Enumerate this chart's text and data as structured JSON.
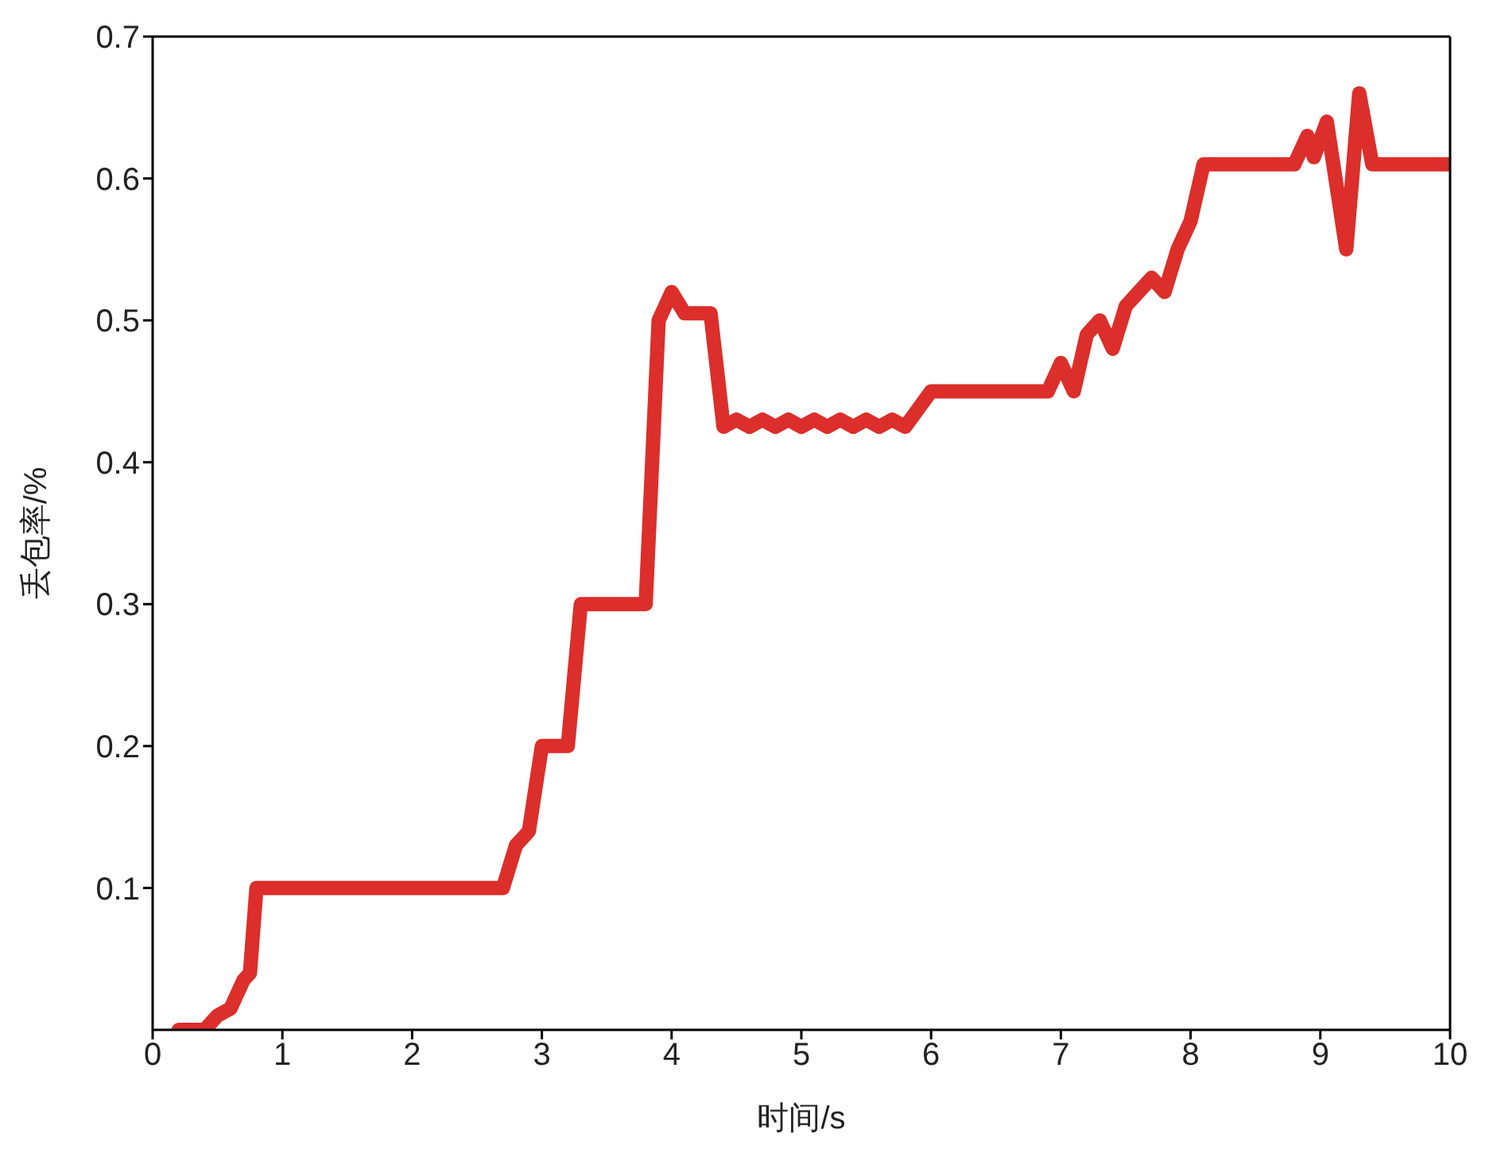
{
  "chart_data": {
    "type": "line",
    "xlabel": "时间/s",
    "ylabel": "丢包率/%",
    "xlim": [
      0,
      10
    ],
    "xticks": [
      0,
      1,
      2,
      3,
      4,
      5,
      6,
      7,
      8,
      9,
      10
    ],
    "ylim": [
      0,
      0.7
    ],
    "yticks": [
      0.1,
      0.2,
      0.3,
      0.4,
      0.5,
      0.6,
      0.7
    ],
    "grid": false,
    "legend": false,
    "marker": "none",
    "line_style": "solid",
    "series": [
      {
        "color": "#dc2e2a",
        "x": [
          0.2,
          0.4,
          0.5,
          0.6,
          0.7,
          0.75,
          0.8,
          2.7,
          2.8,
          2.9,
          3.0,
          3.2,
          3.3,
          3.8,
          3.9,
          4.0,
          4.1,
          4.3,
          4.4,
          4.5,
          4.6,
          4.7,
          4.8,
          4.9,
          5.0,
          5.1,
          5.2,
          5.3,
          5.4,
          5.5,
          5.6,
          5.7,
          5.8,
          6.0,
          6.9,
          7.0,
          7.1,
          7.2,
          7.3,
          7.4,
          7.5,
          7.6,
          7.7,
          7.8,
          7.9,
          8.0,
          8.1,
          8.8,
          8.9,
          8.95,
          9.05,
          9.1,
          9.2,
          9.3,
          9.4,
          10
        ],
        "values": [
          0,
          0,
          0.01,
          0.015,
          0.035,
          0.04,
          0.1,
          0.1,
          0.13,
          0.14,
          0.2,
          0.2,
          0.3,
          0.3,
          0.5,
          0.52,
          0.505,
          0.505,
          0.425,
          0.43,
          0.425,
          0.43,
          0.425,
          0.43,
          0.425,
          0.43,
          0.425,
          0.43,
          0.425,
          0.43,
          0.425,
          0.43,
          0.425,
          0.45,
          0.45,
          0.47,
          0.45,
          0.49,
          0.5,
          0.48,
          0.51,
          0.52,
          0.53,
          0.52,
          0.55,
          0.57,
          0.61,
          0.61,
          0.63,
          0.615,
          0.64,
          0.61,
          0.55,
          0.66,
          0.61,
          0.61
        ]
      }
    ]
  }
}
